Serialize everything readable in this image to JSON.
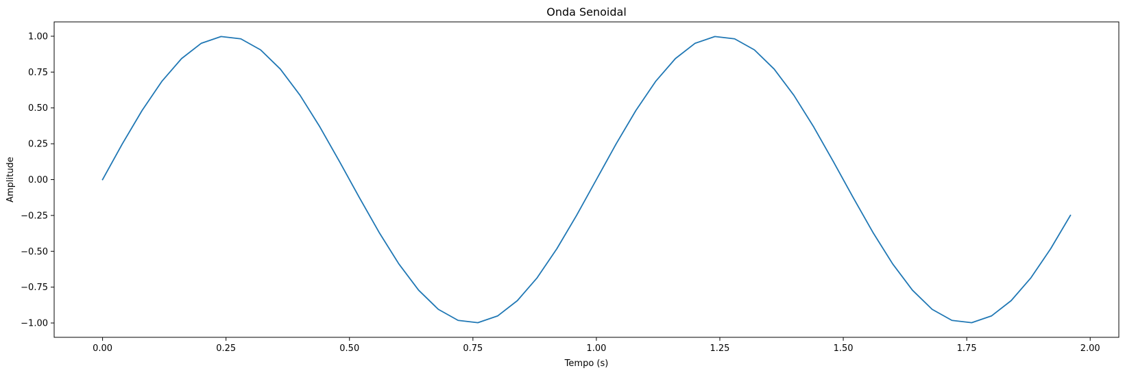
{
  "chart_data": {
    "type": "line",
    "title": "Onda Senoidal",
    "xlabel": "Tempo (s)",
    "ylabel": "Amplitude",
    "xlim": [
      -0.098,
      2.058
    ],
    "ylim": [
      -1.1,
      1.1
    ],
    "xticks": [
      0.0,
      0.25,
      0.5,
      0.75,
      1.0,
      1.25,
      1.5,
      1.75,
      2.0
    ],
    "xtick_labels": [
      "0.00",
      "0.25",
      "0.50",
      "0.75",
      "1.00",
      "1.25",
      "1.50",
      "1.75",
      "2.00"
    ],
    "yticks": [
      -1.0,
      -0.75,
      -0.5,
      -0.25,
      0.0,
      0.25,
      0.5,
      0.75,
      1.0
    ],
    "ytick_labels": [
      "−1.00",
      "−0.75",
      "−0.50",
      "−0.25",
      "0.00",
      "0.25",
      "0.50",
      "0.75",
      "1.00"
    ],
    "grid": false,
    "series": [
      {
        "color": "#1f77b4",
        "x": [
          0.0,
          0.04,
          0.08,
          0.12,
          0.16,
          0.2,
          0.24,
          0.28,
          0.32,
          0.36,
          0.4,
          0.44,
          0.48,
          0.52,
          0.56,
          0.6,
          0.64,
          0.68,
          0.72,
          0.76,
          0.8,
          0.84,
          0.88,
          0.92,
          0.96,
          1.0,
          1.04,
          1.08,
          1.12,
          1.16,
          1.2,
          1.24,
          1.28,
          1.32,
          1.36,
          1.4,
          1.44,
          1.48,
          1.52,
          1.56,
          1.6,
          1.64,
          1.68,
          1.72,
          1.76,
          1.8,
          1.84,
          1.88,
          1.92,
          1.96
        ],
        "y": [
          0.0,
          0.249,
          0.482,
          0.685,
          0.844,
          0.951,
          0.998,
          0.982,
          0.905,
          0.771,
          0.588,
          0.368,
          0.125,
          -0.125,
          -0.368,
          -0.588,
          -0.771,
          -0.905,
          -0.982,
          -0.998,
          -0.951,
          -0.844,
          -0.685,
          -0.482,
          -0.249,
          0.0,
          0.249,
          0.482,
          0.685,
          0.844,
          0.951,
          0.998,
          0.982,
          0.905,
          0.771,
          0.588,
          0.368,
          0.125,
          -0.125,
          -0.368,
          -0.588,
          -0.771,
          -0.905,
          -0.982,
          -0.998,
          -0.951,
          -0.844,
          -0.685,
          -0.482,
          -0.249
        ]
      }
    ]
  }
}
